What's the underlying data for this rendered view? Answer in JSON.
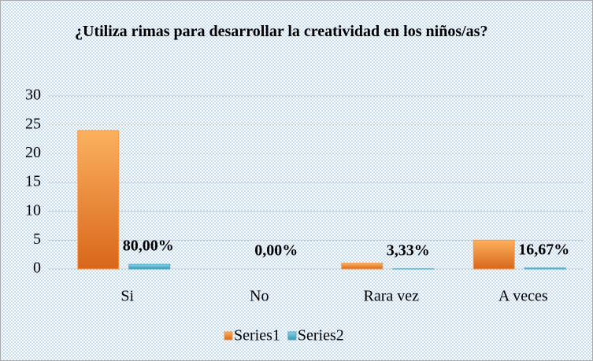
{
  "chart_data": {
    "type": "bar",
    "title": "¿Utiliza rimas para desarrollar la creatividad en los niños/as?",
    "categories": [
      "Si",
      "No",
      "Rara vez",
      "A veces"
    ],
    "series": [
      {
        "name": "Series1",
        "color": "#f79646",
        "values": [
          24,
          0,
          1,
          5
        ]
      },
      {
        "name": "Series2",
        "color": "#4bacc6",
        "values": [
          0.8,
          0,
          0.0333,
          0.1667
        ],
        "value_labels": [
          "80,00%",
          "0,00%",
          "3,33%",
          "16,67%"
        ]
      }
    ],
    "ylim": [
      0,
      30
    ],
    "yticks": [
      0,
      5,
      10,
      15,
      20,
      25,
      30
    ],
    "grid": true,
    "legend": "bottom"
  }
}
